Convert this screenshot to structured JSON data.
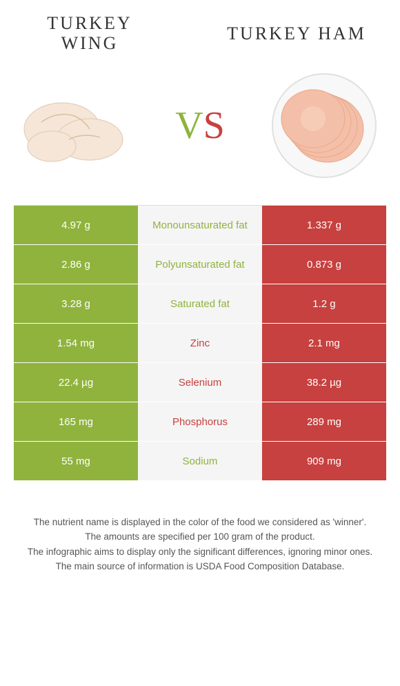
{
  "header": {
    "left_line1": "TURKEY",
    "left_line2": "WING",
    "right": "TURKEY HAM"
  },
  "vs": {
    "v": "V",
    "s": "S"
  },
  "colors": {
    "left_bg": "#8fb33d",
    "right_bg": "#c6413f",
    "mid_bg": "#f5f5f5",
    "left_winner_text": "#8fb33d",
    "right_winner_text": "#c6413f"
  },
  "rows": [
    {
      "left": "4.97 g",
      "mid": "Monounsaturated fat",
      "right": "1.337 g",
      "winner": "left"
    },
    {
      "left": "2.86 g",
      "mid": "Polyunsaturated fat",
      "right": "0.873 g",
      "winner": "left"
    },
    {
      "left": "3.28 g",
      "mid": "Saturated fat",
      "right": "1.2 g",
      "winner": "left"
    },
    {
      "left": "1.54 mg",
      "mid": "Zinc",
      "right": "2.1 mg",
      "winner": "right"
    },
    {
      "left": "22.4 µg",
      "mid": "Selenium",
      "right": "38.2 µg",
      "winner": "right"
    },
    {
      "left": "165 mg",
      "mid": "Phosphorus",
      "right": "289 mg",
      "winner": "right"
    },
    {
      "left": "55 mg",
      "mid": "Sodium",
      "right": "909 mg",
      "winner": "left"
    }
  ],
  "footnotes": [
    "The nutrient name is displayed in the color of the food we considered as 'winner'.",
    "The amounts are specified per 100 gram of the product.",
    "The infographic aims to display only the significant differences, ignoring minor ones.",
    "The main source of information is USDA Food Composition Database."
  ]
}
